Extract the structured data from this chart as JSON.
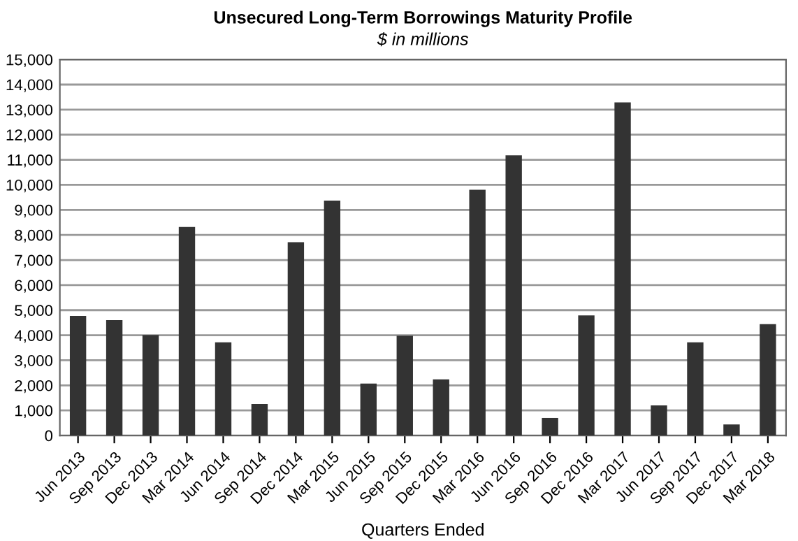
{
  "chart_data": {
    "type": "bar",
    "title": "Unsecured Long-Term Borrowings Maturity Profile",
    "subtitle": "$ in millions",
    "xlabel": "Quarters Ended",
    "categories": [
      "Jun 2013",
      "Sep 2013",
      "Dec 2013",
      "Mar 2014",
      "Jun 2014",
      "Sep 2014",
      "Dec 2014",
      "Mar 2015",
      "Jun 2015",
      "Sep 2015",
      "Dec 2015",
      "Mar 2016",
      "Jun 2016",
      "Sep 2016",
      "Dec 2016",
      "Mar 2017",
      "Jun 2017",
      "Sep 2017",
      "Dec 2017",
      "Mar 2018"
    ],
    "values": [
      4770,
      4600,
      4010,
      8320,
      3720,
      1260,
      7710,
      9370,
      2070,
      3980,
      2240,
      9800,
      11180,
      700,
      4790,
      13290,
      1200,
      3720,
      440,
      4440
    ],
    "color": "#333333",
    "ylim": [
      0,
      15000
    ],
    "yticks": [
      {
        "value": 0,
        "label": "0"
      },
      {
        "value": 1000,
        "label": "1,000"
      },
      {
        "value": 2000,
        "label": "2,000"
      },
      {
        "value": 3000,
        "label": "3,000"
      },
      {
        "value": 4000,
        "label": "4,000"
      },
      {
        "value": 5000,
        "label": "5,000"
      },
      {
        "value": 6000,
        "label": "6,000"
      },
      {
        "value": 7000,
        "label": "7,000"
      },
      {
        "value": 8000,
        "label": "8,000"
      },
      {
        "value": 9000,
        "label": "9,000"
      },
      {
        "value": 10000,
        "label": "10,000"
      },
      {
        "value": 11000,
        "label": "11,000"
      },
      {
        "value": 12000,
        "label": "12,000"
      },
      {
        "value": 13000,
        "label": "13,000"
      },
      {
        "value": 14000,
        "label": "14,000"
      },
      {
        "value": 15000,
        "label": "15,000"
      }
    ],
    "grid": "y",
    "legend": false
  }
}
